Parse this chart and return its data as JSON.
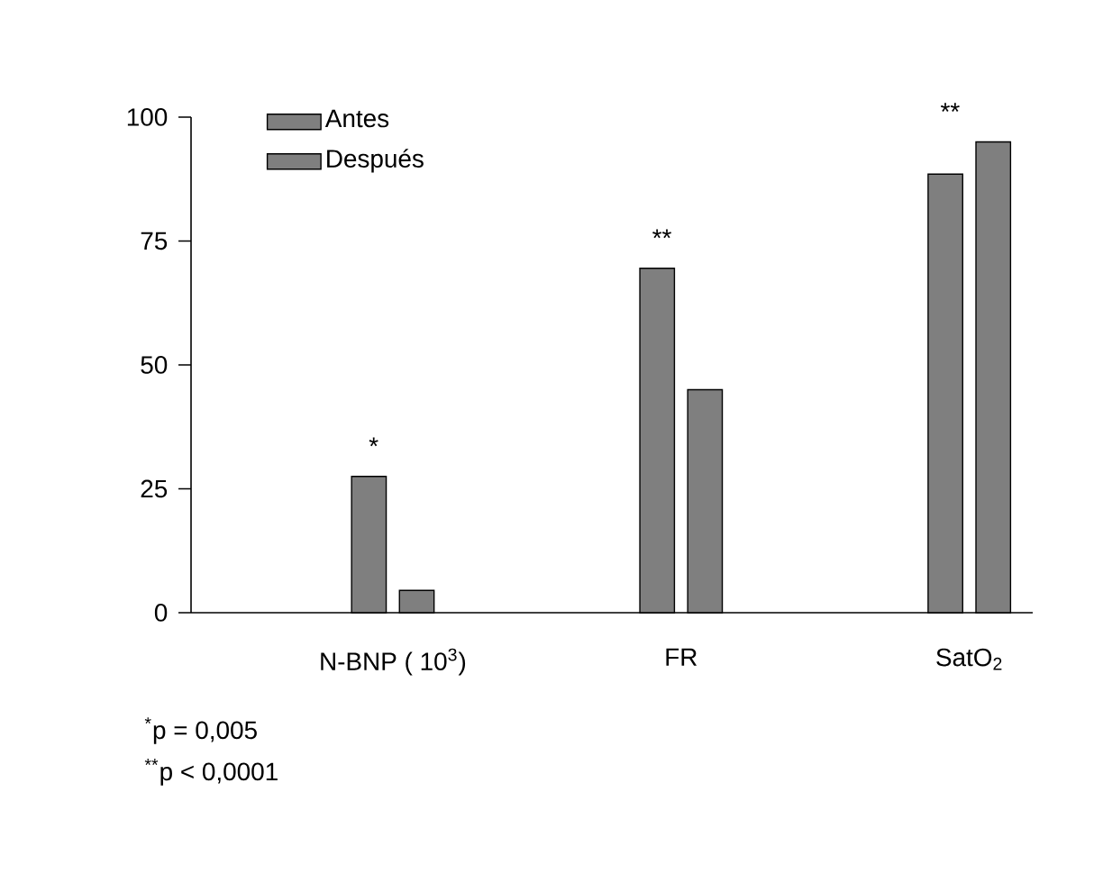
{
  "chart_data": {
    "type": "bar",
    "categories": [
      "N-BNP (  10$^{3}$)",
      "FR",
      "SatO$_{2}$"
    ],
    "series": [
      {
        "name": "Antes",
        "color": "#7f7f7f",
        "values": [
          27.5,
          69.5,
          88.5
        ]
      },
      {
        "name": "Después",
        "color": "#7f7f7f",
        "values": [
          4.5,
          45,
          95
        ]
      }
    ],
    "ylim": [
      0,
      100
    ],
    "yticks": [
      0,
      25,
      50,
      75,
      100
    ],
    "legend": "top left",
    "annotations": [
      "*",
      "**",
      "**",
      "$^{*}$p = 0,005",
      "$^{**}$p < 0,0001"
    ]
  }
}
